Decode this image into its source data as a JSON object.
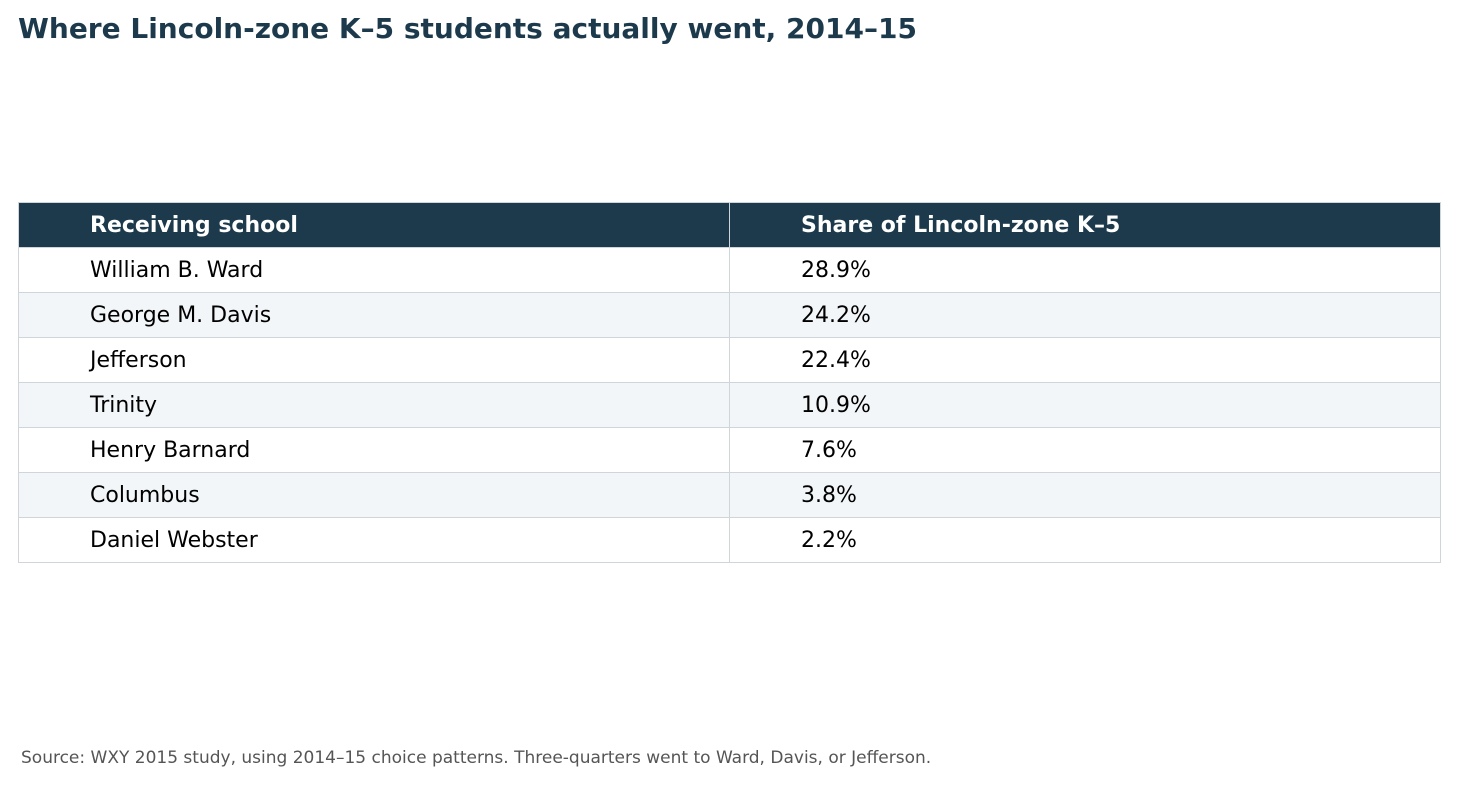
{
  "title": "Where Lincoln-zone K–5 students actually went, 2014–15",
  "source": "Source: WXY 2015 study, using 2014–15 choice patterns. Three-quarters went to Ward, Davis, or Jefferson.",
  "colors": {
    "header_bg": "#1c3a4c",
    "header_text": "#ffffff",
    "title": "#1c3a4c",
    "row_alt": "#f3f6f8",
    "border": "#d0d5d9"
  },
  "chart_data": {
    "type": "table",
    "title": "Where Lincoln-zone K–5 students actually went, 2014–15",
    "columns": [
      "Receiving school",
      "Share of Lincoln-zone K–5"
    ],
    "rows": [
      [
        "William B. Ward",
        "28.9%"
      ],
      [
        "George M. Davis",
        "24.2%"
      ],
      [
        "Jefferson",
        "22.4%"
      ],
      [
        "Trinity",
        "10.9%"
      ],
      [
        "Henry Barnard",
        "7.6%"
      ],
      [
        "Columbus",
        "3.8%"
      ],
      [
        "Daniel Webster",
        "2.2%"
      ]
    ]
  }
}
